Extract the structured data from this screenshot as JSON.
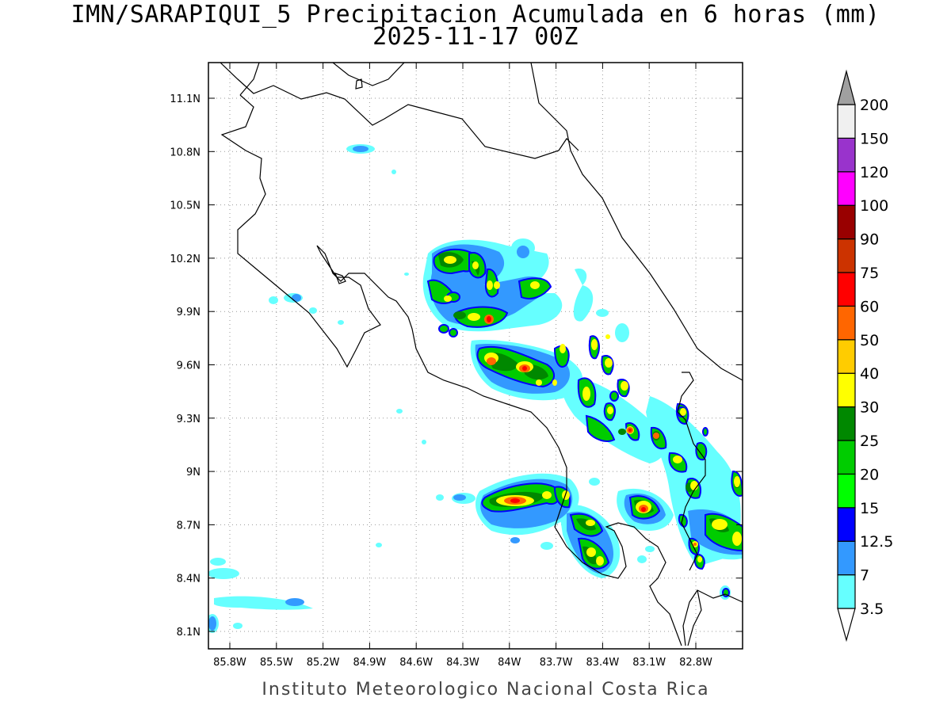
{
  "title_line1": "IMN/SARAPIQUI_5 Precipitacion Acumulada en 6 horas (mm)",
  "title_line2": "2025-11-17 00Z",
  "footer": "Instituto Meteorologico Nacional Costa Rica",
  "map": {
    "lon_ticks": [
      "85.8W",
      "85.5W",
      "85.2W",
      "84.9W",
      "84.6W",
      "84.3W",
      "84W",
      "83.7W",
      "83.4W",
      "83.1W",
      "82.8W"
    ],
    "lat_ticks": [
      "11.1N",
      "10.8N",
      "10.5N",
      "10.2N",
      "9.9N",
      "9.6N",
      "9.3N",
      "9N",
      "8.7N",
      "8.4N",
      "8.1N"
    ],
    "lon_values": [
      -85.8,
      -85.5,
      -85.2,
      -84.9,
      -84.6,
      -84.3,
      -84.0,
      -83.7,
      -83.4,
      -83.1,
      -82.8
    ],
    "lat_values": [
      11.1,
      10.8,
      10.5,
      10.2,
      9.9,
      9.6,
      9.3,
      9.0,
      8.7,
      8.4,
      8.1
    ],
    "grid": true
  },
  "colorbar": {
    "levels": [
      "3.5",
      "7",
      "12.5",
      "15",
      "20",
      "25",
      "30",
      "40",
      "50",
      "60",
      "75",
      "90",
      "100",
      "120",
      "150",
      "200"
    ],
    "colors": [
      "#66ffff",
      "#3399ff",
      "#0000ff",
      "#00ff00",
      "#00cc00",
      "#008800",
      "#ffff00",
      "#ffcc00",
      "#ff6600",
      "#ff0000",
      "#cc3300",
      "#990000",
      "#ff00ff",
      "#9933cc",
      "#f0f0f0",
      "#a0a0a0"
    ],
    "units": "mm"
  }
}
